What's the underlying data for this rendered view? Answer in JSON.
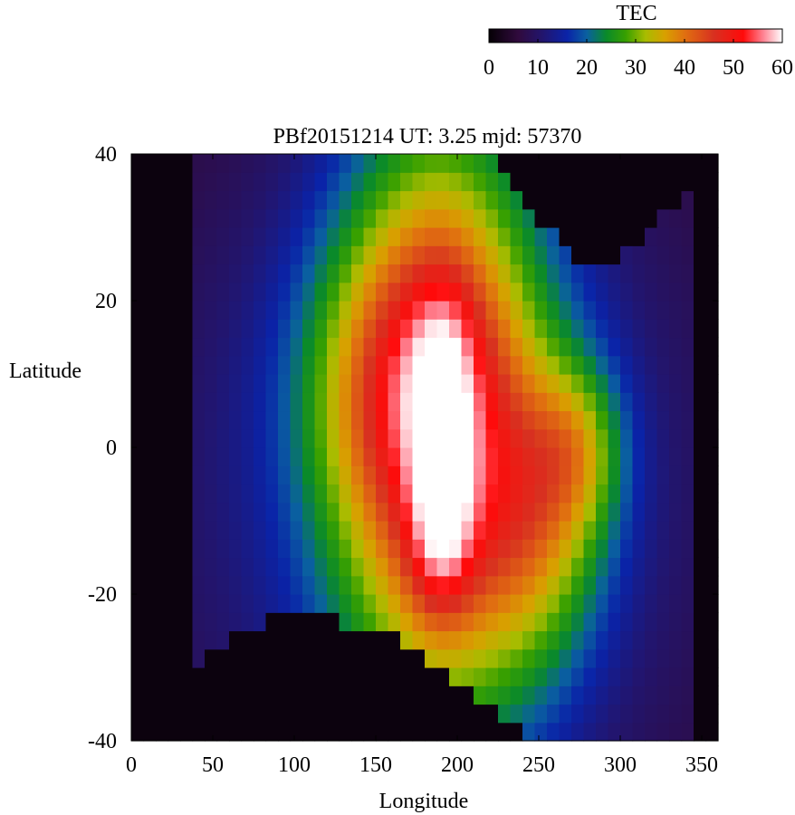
{
  "chart_data": {
    "type": "heatmap",
    "title": "PBf20151214  UT: 3.25  mjd: 57370",
    "xlabel": "Longitude",
    "ylabel": "Latitude",
    "xlim": [
      0,
      360
    ],
    "ylim": [
      -40,
      40
    ],
    "x_ticks": [
      0,
      50,
      100,
      150,
      200,
      250,
      300,
      350
    ],
    "y_ticks": [
      40,
      20,
      0,
      -20,
      -40
    ],
    "grid": false,
    "colorbar": {
      "label": "TEC",
      "placement": "top-right",
      "range": [
        0,
        60
      ],
      "ticks": [
        0,
        10,
        20,
        30,
        40,
        50,
        60
      ],
      "colormap": [
        {
          "v": 0,
          "color": "#050005"
        },
        {
          "v": 6,
          "color": "#300a3d"
        },
        {
          "v": 11,
          "color": "#22156e"
        },
        {
          "v": 16,
          "color": "#0a23a8"
        },
        {
          "v": 20,
          "color": "#0a60a0"
        },
        {
          "v": 24,
          "color": "#0a8a2a"
        },
        {
          "v": 28,
          "color": "#38a000"
        },
        {
          "v": 32,
          "color": "#a8bc00"
        },
        {
          "v": 36,
          "color": "#d8a000"
        },
        {
          "v": 40,
          "color": "#e07010"
        },
        {
          "v": 46,
          "color": "#d83020"
        },
        {
          "v": 52,
          "color": "#ff0a0a"
        },
        {
          "v": 56,
          "color": "#ff8090"
        },
        {
          "v": 60,
          "color": "#ffffff"
        }
      ]
    },
    "cell_size": {
      "dlon": 7.5,
      "dlat": 2.5
    },
    "field_model": {
      "background": 1,
      "valid_north_lat": [
        {
          "lon": 0,
          "lat": 40
        },
        {
          "lon": 225,
          "lat": 40
        },
        {
          "lon": 235,
          "lat": 35
        },
        {
          "lon": 255,
          "lat": 30
        },
        {
          "lon": 275,
          "lat": 25
        },
        {
          "lon": 290,
          "lat": 25
        },
        {
          "lon": 310,
          "lat": 28
        },
        {
          "lon": 330,
          "lat": 32
        },
        {
          "lon": 340,
          "lat": 34
        }
      ],
      "valid_south_lat": [
        {
          "lon": 0,
          "lat": -40
        },
        {
          "lon": 60,
          "lat": -26
        },
        {
          "lon": 90,
          "lat": -23
        },
        {
          "lon": 120,
          "lat": -23
        },
        {
          "lon": 160,
          "lat": -26
        },
        {
          "lon": 190,
          "lat": -30
        },
        {
          "lon": 220,
          "lat": -35
        },
        {
          "lon": 245,
          "lat": -40
        },
        {
          "lon": 330,
          "lat": -40
        }
      ],
      "valid_lon_range": [
        40,
        345
      ],
      "components": [
        {
          "lon": 190,
          "lat": 5,
          "sx": 45,
          "sy": 30,
          "amp": 33
        },
        {
          "lon": 160,
          "lat": 8,
          "sx": 40,
          "sy": 14,
          "amp": 12
        },
        {
          "lon": 190,
          "lat": -12,
          "sx": 14,
          "sy": 8,
          "amp": 14
        },
        {
          "lon": 192,
          "lat": 10,
          "sx": 14,
          "sy": 10,
          "amp": 8
        },
        {
          "lon": 250,
          "lat": -10,
          "sx": 30,
          "sy": 14,
          "amp": 15
        },
        {
          "lon": 275,
          "lat": 0,
          "sx": 20,
          "sy": 8,
          "amp": 12
        },
        {
          "lon": 185,
          "lat": -5,
          "sx": 130,
          "sy": 40,
          "amp": 12
        }
      ]
    }
  }
}
